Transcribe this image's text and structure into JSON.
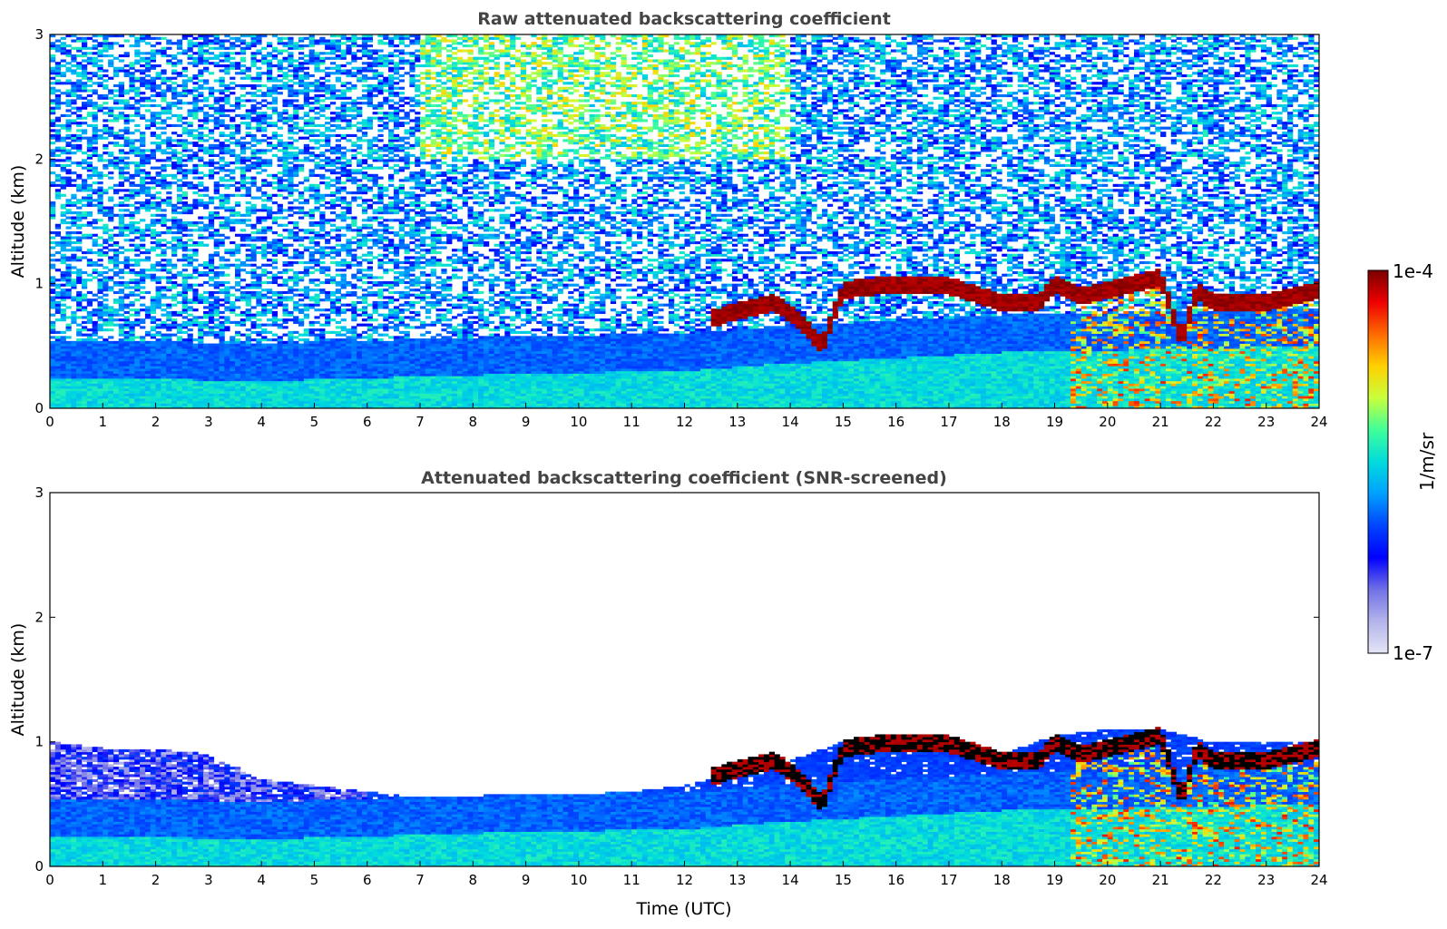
{
  "chart_data": [
    {
      "type": "heatmap",
      "title": "Raw attenuated backscattering coefficient",
      "xlabel": "",
      "ylabel": "Altitude (km)",
      "xlim": [
        0,
        24
      ],
      "ylim": [
        0,
        3
      ],
      "x_ticks": [
        "0",
        "1",
        "2",
        "3",
        "4",
        "5",
        "6",
        "7",
        "8",
        "9",
        "10",
        "11",
        "12",
        "13",
        "14",
        "15",
        "16",
        "17",
        "18",
        "19",
        "20",
        "21",
        "22",
        "23",
        "24"
      ],
      "y_ticks": [
        "0",
        "1",
        "2",
        "3"
      ],
      "screened": false,
      "noise_level": "high",
      "features": {
        "boundary_layer_top_km": [
          {
            "t": 0,
            "h": 0.25
          },
          {
            "t": 4,
            "h": 0.22
          },
          {
            "t": 9,
            "h": 0.28
          },
          {
            "t": 12,
            "h": 0.3
          },
          {
            "t": 13.5,
            "h": 0.35
          },
          {
            "t": 18,
            "h": 0.45
          },
          {
            "t": 24,
            "h": 0.5
          }
        ],
        "cloud_layer": [
          {
            "t": 12.5,
            "h": 0.72
          },
          {
            "t": 13,
            "h": 0.78
          },
          {
            "t": 13.7,
            "h": 0.85
          },
          {
            "t": 14.2,
            "h": 0.7
          },
          {
            "t": 14.6,
            "h": 0.5
          },
          {
            "t": 15,
            "h": 0.95
          },
          {
            "t": 16,
            "h": 1.0
          },
          {
            "t": 17,
            "h": 0.98
          },
          {
            "t": 18,
            "h": 0.85
          },
          {
            "t": 18.7,
            "h": 0.85
          },
          {
            "t": 19,
            "h": 1.0
          },
          {
            "t": 19.5,
            "h": 0.9
          },
          {
            "t": 20,
            "h": 0.95
          },
          {
            "t": 20.5,
            "h": 1.0
          },
          {
            "t": 21,
            "h": 1.05
          },
          {
            "t": 21.4,
            "h": 0.55
          },
          {
            "t": 21.7,
            "h": 0.95
          },
          {
            "t": 22,
            "h": 0.85
          },
          {
            "t": 23,
            "h": 0.85
          },
          {
            "t": 24,
            "h": 0.95
          }
        ]
      }
    },
    {
      "type": "heatmap",
      "title": "Attenuated backscattering coefficient (SNR-screened)",
      "xlabel": "Time (UTC)",
      "ylabel": "Altitude (km)",
      "xlim": [
        0,
        24
      ],
      "ylim": [
        0,
        3
      ],
      "x_ticks": [
        "0",
        "1",
        "2",
        "3",
        "4",
        "5",
        "6",
        "7",
        "8",
        "9",
        "10",
        "11",
        "12",
        "13",
        "14",
        "15",
        "16",
        "17",
        "18",
        "19",
        "20",
        "21",
        "22",
        "23",
        "24"
      ],
      "y_ticks": [
        "0",
        "1",
        "2",
        "3"
      ],
      "screened": true,
      "features": {
        "signal_top_km": [
          {
            "t": 0,
            "h": 1.0
          },
          {
            "t": 1,
            "h": 0.95
          },
          {
            "t": 2,
            "h": 0.95
          },
          {
            "t": 3,
            "h": 0.9
          },
          {
            "t": 4,
            "h": 0.7
          },
          {
            "t": 5,
            "h": 0.65
          },
          {
            "t": 6,
            "h": 0.6
          },
          {
            "t": 7,
            "h": 0.55
          },
          {
            "t": 8,
            "h": 0.55
          },
          {
            "t": 9,
            "h": 0.5
          },
          {
            "t": 10,
            "h": 0.55
          },
          {
            "t": 11,
            "h": 0.6
          },
          {
            "t": 12,
            "h": 0.65
          },
          {
            "t": 13,
            "h": 0.75
          },
          {
            "t": 14,
            "h": 0.85
          },
          {
            "t": 15,
            "h": 1.0
          },
          {
            "t": 16,
            "h": 1.05
          },
          {
            "t": 17,
            "h": 1.05
          },
          {
            "t": 18,
            "h": 0.9
          },
          {
            "t": 19,
            "h": 1.05
          },
          {
            "t": 20,
            "h": 1.1
          },
          {
            "t": 21,
            "h": 1.1
          },
          {
            "t": 22,
            "h": 1.0
          },
          {
            "t": 23,
            "h": 1.0
          },
          {
            "t": 24,
            "h": 1.0
          }
        ],
        "saturated_cloud": true
      }
    }
  ],
  "colorbar": {
    "label": "1/m/sr",
    "min_label": "1e-7",
    "max_label": "1e-4",
    "scale": "log",
    "colors": [
      "#e4e4f6",
      "#b4b4ec",
      "#7070e6",
      "#0000ff",
      "#0044ff",
      "#00a0ff",
      "#00dcdc",
      "#40ff9a",
      "#c8ff3c",
      "#ffd000",
      "#ff6a00",
      "#ee0000",
      "#7a0000"
    ]
  }
}
